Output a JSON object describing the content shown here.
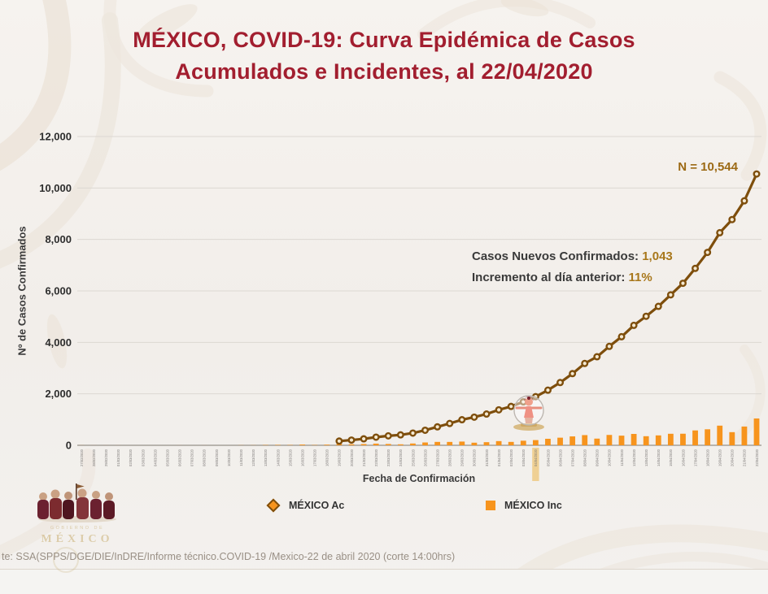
{
  "page": {
    "title_line1": "MÉXICO, COVID-19: Curva Epidémica de Casos",
    "title_line2": "Acumulados e Incidentes, al 22/04/2020"
  },
  "annotations": {
    "n_total": "N = 10,544",
    "new_cases_label": "Casos Nuevos Confirmados: ",
    "new_cases_value": "1,043",
    "increment_label": "Incremento al día anterior: ",
    "increment_value": "11%"
  },
  "legend": {
    "items": [
      {
        "label": "MÉXICO Ac",
        "marker": "diamond-icon"
      },
      {
        "label": "MÉXICO Inc",
        "marker": "square-icon"
      }
    ]
  },
  "logo": {
    "text_top": "GOBIERNO DE",
    "text_main": "MÉXICO"
  },
  "source_note": "te: SSA(SPPS/DGE/DIE/InDRE/Informe técnico.COVID-19 /Mexico-22 de abril 2020 (corte 14:00hrs)",
  "colors": {
    "title_red": "#a21e2f",
    "accent_gold": "#a8771b",
    "ac_line": "#7e4e0c",
    "inc_bar": "#f7941d"
  },
  "chart_data": {
    "type": "combo",
    "title": "MÉXICO, COVID-19: Curva Epidémica de Casos Acumulados e Incidentes, al 22/04/2020",
    "xlabel": "Fecha de Confirmación",
    "ylabel": "Nº de Casos Confirmados",
    "ylim": [
      0,
      12000
    ],
    "grid": true,
    "legend_position": "bottom",
    "yticks": [
      {
        "value": 0,
        "label": "0"
      },
      {
        "value": 2000,
        "label": "2,000"
      },
      {
        "value": 4000,
        "label": "4,000"
      },
      {
        "value": 6000,
        "label": "6,000"
      },
      {
        "value": 8000,
        "label": "8,000"
      },
      {
        "value": 10000,
        "label": "10,000"
      },
      {
        "value": 12000,
        "label": "12,000"
      }
    ],
    "highlight_index": 37,
    "colors": {
      "ac": "#7e4e0c",
      "inc": "#f7941d"
    },
    "dates": [
      "27/02/2020",
      "28/02/2020",
      "29/02/2020",
      "01/03/2020",
      "02/03/2020",
      "03/03/2020",
      "04/03/2020",
      "05/03/2020",
      "06/03/2020",
      "07/03/2020",
      "08/03/2020",
      "09/03/2020",
      "10/03/2020",
      "11/03/2020",
      "12/03/2020",
      "13/03/2020",
      "14/03/2020",
      "15/03/2020",
      "16/03/2020",
      "17/03/2020",
      "18/03/2020",
      "19/03/2020",
      "20/03/2020",
      "21/03/2020",
      "22/03/2020",
      "23/03/2020",
      "24/03/2020",
      "25/03/2020",
      "26/03/2020",
      "27/03/2020",
      "28/03/2020",
      "29/03/2020",
      "30/03/2020",
      "31/03/2020",
      "01/04/2020",
      "02/04/2020",
      "03/04/2020",
      "04/04/2020",
      "05/04/2020",
      "06/04/2020",
      "07/04/2020",
      "08/04/2020",
      "09/04/2020",
      "10/04/2020",
      "11/04/2020",
      "12/04/2020",
      "13/04/2020",
      "14/04/2020",
      "15/04/2020",
      "16/04/2020",
      "17/04/2020",
      "18/04/2020",
      "19/04/2020",
      "20/04/2020",
      "21/04/2020",
      "22/04/2020"
    ],
    "series": [
      {
        "name": "MÉXICO Ac",
        "type": "line",
        "values": [
          2,
          3,
          4,
          5,
          5,
          5,
          5,
          5,
          6,
          6,
          7,
          7,
          7,
          11,
          15,
          26,
          41,
          53,
          82,
          93,
          118,
          164,
          203,
          251,
          316,
          367,
          405,
          475,
          585,
          717,
          848,
          993,
          1094,
          1215,
          1378,
          1510,
          1688,
          1890,
          2143,
          2439,
          2785,
          3181,
          3441,
          3844,
          4219,
          4661,
          5014,
          5399,
          5847,
          6297,
          6875,
          7497,
          8261,
          8772,
          9501,
          10544
        ]
      },
      {
        "name": "MÉXICO Inc",
        "type": "bar",
        "values": [
          2,
          1,
          1,
          1,
          0,
          0,
          0,
          0,
          1,
          0,
          1,
          0,
          0,
          4,
          4,
          11,
          15,
          12,
          29,
          11,
          25,
          46,
          39,
          48,
          65,
          51,
          38,
          70,
          110,
          132,
          131,
          145,
          101,
          121,
          163,
          132,
          178,
          202,
          253,
          296,
          346,
          396,
          260,
          403,
          375,
          442,
          353,
          385,
          448,
          450,
          578,
          622,
          764,
          511,
          729,
          1043
        ]
      }
    ]
  }
}
